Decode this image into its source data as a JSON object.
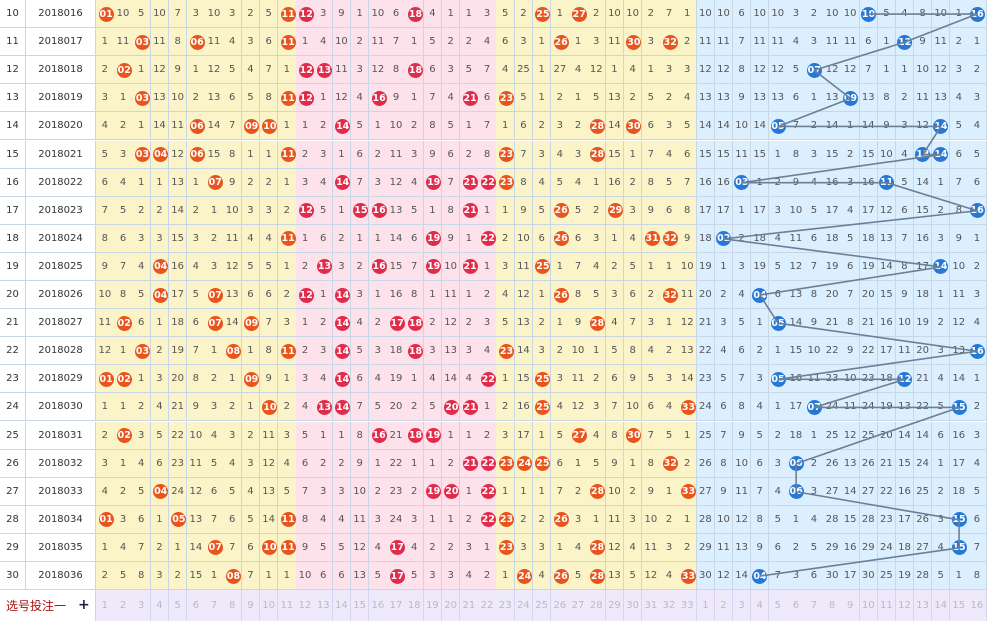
{
  "footer": {
    "label": "选号投注一",
    "plus": "+"
  },
  "red_numbers": [
    "1",
    "2",
    "3",
    "4",
    "5",
    "6",
    "7",
    "8",
    "9",
    "10",
    "11",
    "12",
    "13",
    "14",
    "15",
    "16",
    "17",
    "18",
    "19",
    "20",
    "21",
    "22",
    "23",
    "24",
    "25",
    "26",
    "27",
    "28",
    "29",
    "30",
    "31",
    "32",
    "33"
  ],
  "blue_numbers": [
    "1",
    "2",
    "3",
    "4",
    "5",
    "6",
    "7",
    "8",
    "9",
    "10",
    "11",
    "12",
    "13",
    "14",
    "15",
    "16"
  ],
  "colors": {
    "red_ball": "#e8541c",
    "pink_ball": "#e02b4b",
    "blue_ball": "#2678d6"
  },
  "rows": [
    {
      "no": "10",
      "period": "2018016",
      "red": [
        "01",
        "10",
        "5",
        "10",
        "7",
        "3",
        "10",
        "3",
        "2",
        "5",
        "11",
        "12",
        "3",
        "9",
        "1",
        "10",
        "6",
        "18",
        "4",
        "1",
        "1",
        "3",
        "5",
        "2",
        "25",
        "1",
        "27",
        "2",
        "10",
        "10",
        "2",
        "7",
        "1"
      ],
      "blue": [
        "10",
        "10",
        "6",
        "10",
        "10",
        "3",
        "2",
        "10",
        "10",
        "10",
        "5",
        "4",
        "8",
        "10",
        "1",
        "16"
      ]
    },
    {
      "no": "11",
      "period": "2018017",
      "red": [
        "1",
        "11",
        "03",
        "11",
        "8",
        "06",
        "11",
        "4",
        "3",
        "6",
        "11",
        "1",
        "4",
        "10",
        "2",
        "11",
        "7",
        "1",
        "5",
        "2",
        "2",
        "4",
        "6",
        "3",
        "1",
        "26",
        "1",
        "3",
        "11",
        "30",
        "3",
        "32",
        "2"
      ],
      "blue": [
        "11",
        "11",
        "7",
        "11",
        "11",
        "4",
        "3",
        "11",
        "11",
        "6",
        "1",
        "12",
        "9",
        "11",
        "2",
        "1"
      ]
    },
    {
      "no": "12",
      "period": "2018018",
      "red": [
        "2",
        "02",
        "1",
        "12",
        "9",
        "1",
        "12",
        "5",
        "4",
        "7",
        "1",
        "12",
        "13",
        "11",
        "3",
        "12",
        "8",
        "18",
        "6",
        "3",
        "5",
        "7",
        "4",
        "25",
        "1",
        "27",
        "4",
        "12",
        "1",
        "4",
        "1",
        "3",
        "3"
      ],
      "blue": [
        "12",
        "12",
        "8",
        "12",
        "12",
        "5",
        "07",
        "12",
        "12",
        "7",
        "1",
        "1",
        "10",
        "12",
        "3",
        "2"
      ]
    },
    {
      "no": "13",
      "period": "2018019",
      "red": [
        "3",
        "1",
        "03",
        "13",
        "10",
        "2",
        "13",
        "6",
        "5",
        "8",
        "11",
        "12",
        "1",
        "12",
        "4",
        "16",
        "9",
        "1",
        "7",
        "4",
        "21",
        "6",
        "23",
        "5",
        "1",
        "2",
        "1",
        "5",
        "13",
        "2",
        "5",
        "2",
        "4"
      ],
      "blue": [
        "13",
        "13",
        "9",
        "13",
        "13",
        "6",
        "1",
        "13",
        "09",
        "13",
        "8",
        "2",
        "11",
        "13",
        "4",
        "3"
      ]
    },
    {
      "no": "14",
      "period": "2018020",
      "red": [
        "4",
        "2",
        "1",
        "14",
        "11",
        "06",
        "14",
        "7",
        "09",
        "10",
        "1",
        "1",
        "2",
        "14",
        "5",
        "1",
        "10",
        "2",
        "8",
        "5",
        "1",
        "7",
        "1",
        "6",
        "2",
        "3",
        "2",
        "28",
        "14",
        "30",
        "6",
        "3",
        "5"
      ],
      "blue": [
        "14",
        "14",
        "10",
        "14",
        "05",
        "7",
        "2",
        "14",
        "1",
        "14",
        "9",
        "3",
        "12",
        "14",
        "5",
        "4"
      ]
    },
    {
      "no": "15",
      "period": "2018021",
      "red": [
        "5",
        "3",
        "03",
        "04",
        "12",
        "06",
        "15",
        "8",
        "1",
        "1",
        "11",
        "2",
        "3",
        "1",
        "6",
        "2",
        "11",
        "3",
        "9",
        "6",
        "2",
        "8",
        "23",
        "7",
        "3",
        "4",
        "3",
        "28",
        "15",
        "1",
        "7",
        "4",
        "6"
      ],
      "blue": [
        "15",
        "15",
        "11",
        "15",
        "1",
        "8",
        "3",
        "15",
        "2",
        "15",
        "10",
        "4",
        "13",
        "14",
        "6",
        "5"
      ]
    },
    {
      "no": "16",
      "period": "2018022",
      "red": [
        "6",
        "4",
        "1",
        "1",
        "13",
        "1",
        "07",
        "9",
        "2",
        "2",
        "1",
        "3",
        "4",
        "14",
        "7",
        "3",
        "12",
        "4",
        "19",
        "7",
        "21",
        "22",
        "23",
        "8",
        "4",
        "5",
        "4",
        "1",
        "16",
        "2",
        "8",
        "5",
        "7"
      ],
      "blue": [
        "16",
        "16",
        "03",
        "1",
        "2",
        "9",
        "4",
        "16",
        "3",
        "16",
        "11",
        "5",
        "14",
        "1",
        "7",
        "6"
      ]
    },
    {
      "no": "17",
      "period": "2018023",
      "red": [
        "7",
        "5",
        "2",
        "2",
        "14",
        "2",
        "1",
        "10",
        "3",
        "3",
        "2",
        "12",
        "5",
        "1",
        "15",
        "16",
        "13",
        "5",
        "1",
        "8",
        "21",
        "1",
        "1",
        "9",
        "5",
        "26",
        "5",
        "2",
        "29",
        "3",
        "9",
        "6",
        "8"
      ],
      "blue": [
        "17",
        "17",
        "1",
        "17",
        "3",
        "10",
        "5",
        "17",
        "4",
        "17",
        "12",
        "6",
        "15",
        "2",
        "8",
        "16"
      ]
    },
    {
      "no": "18",
      "period": "2018024",
      "red": [
        "8",
        "6",
        "3",
        "3",
        "15",
        "3",
        "2",
        "11",
        "4",
        "4",
        "11",
        "1",
        "6",
        "2",
        "1",
        "1",
        "14",
        "6",
        "19",
        "9",
        "1",
        "22",
        "2",
        "10",
        "6",
        "26",
        "6",
        "3",
        "1",
        "4",
        "31",
        "32",
        "9"
      ],
      "blue": [
        "18",
        "02",
        "2",
        "18",
        "4",
        "11",
        "6",
        "18",
        "5",
        "18",
        "13",
        "7",
        "16",
        "3",
        "9",
        "1"
      ]
    },
    {
      "no": "19",
      "period": "2018025",
      "red": [
        "9",
        "7",
        "4",
        "04",
        "16",
        "4",
        "3",
        "12",
        "5",
        "5",
        "1",
        "2",
        "13",
        "3",
        "2",
        "16",
        "15",
        "7",
        "19",
        "10",
        "21",
        "1",
        "3",
        "11",
        "25",
        "1",
        "7",
        "4",
        "2",
        "5",
        "1",
        "1",
        "10"
      ],
      "blue": [
        "19",
        "1",
        "3",
        "19",
        "5",
        "12",
        "7",
        "19",
        "6",
        "19",
        "14",
        "8",
        "17",
        "14",
        "10",
        "2"
      ]
    },
    {
      "no": "20",
      "period": "2018026",
      "red": [
        "10",
        "8",
        "5",
        "04",
        "17",
        "5",
        "07",
        "13",
        "6",
        "6",
        "2",
        "12",
        "1",
        "14",
        "3",
        "1",
        "16",
        "8",
        "1",
        "11",
        "1",
        "2",
        "4",
        "12",
        "1",
        "26",
        "8",
        "5",
        "3",
        "6",
        "2",
        "32",
        "11"
      ],
      "blue": [
        "20",
        "2",
        "4",
        "04",
        "6",
        "13",
        "8",
        "20",
        "7",
        "20",
        "15",
        "9",
        "18",
        "1",
        "11",
        "3"
      ]
    },
    {
      "no": "21",
      "period": "2018027",
      "red": [
        "11",
        "02",
        "6",
        "1",
        "18",
        "6",
        "07",
        "14",
        "09",
        "7",
        "3",
        "1",
        "2",
        "14",
        "4",
        "2",
        "17",
        "18",
        "2",
        "12",
        "2",
        "3",
        "5",
        "13",
        "2",
        "1",
        "9",
        "28",
        "4",
        "7",
        "3",
        "1",
        "12"
      ],
      "blue": [
        "21",
        "3",
        "5",
        "1",
        "05",
        "14",
        "9",
        "21",
        "8",
        "21",
        "16",
        "10",
        "19",
        "2",
        "12",
        "4"
      ]
    },
    {
      "no": "22",
      "period": "2018028",
      "red": [
        "12",
        "1",
        "03",
        "2",
        "19",
        "7",
        "1",
        "08",
        "1",
        "8",
        "11",
        "2",
        "3",
        "14",
        "5",
        "3",
        "18",
        "18",
        "3",
        "13",
        "3",
        "4",
        "23",
        "14",
        "3",
        "2",
        "10",
        "1",
        "5",
        "8",
        "4",
        "2",
        "13"
      ],
      "blue": [
        "22",
        "4",
        "6",
        "2",
        "1",
        "15",
        "10",
        "22",
        "9",
        "22",
        "17",
        "11",
        "20",
        "3",
        "13",
        "16"
      ]
    },
    {
      "no": "23",
      "period": "2018029",
      "red": [
        "01",
        "02",
        "1",
        "3",
        "20",
        "8",
        "2",
        "1",
        "09",
        "9",
        "1",
        "3",
        "4",
        "14",
        "6",
        "4",
        "19",
        "1",
        "4",
        "14",
        "4",
        "22",
        "1",
        "15",
        "25",
        "3",
        "11",
        "2",
        "6",
        "9",
        "5",
        "3",
        "14"
      ],
      "blue": [
        "23",
        "5",
        "7",
        "3",
        "05",
        "16",
        "11",
        "23",
        "10",
        "23",
        "18",
        "12",
        "21",
        "4",
        "14",
        "1"
      ]
    },
    {
      "no": "24",
      "period": "2018030",
      "red": [
        "1",
        "1",
        "2",
        "4",
        "21",
        "9",
        "3",
        "2",
        "1",
        "10",
        "2",
        "4",
        "13",
        "14",
        "7",
        "5",
        "20",
        "2",
        "5",
        "20",
        "21",
        "1",
        "2",
        "16",
        "25",
        "4",
        "12",
        "3",
        "7",
        "10",
        "6",
        "4",
        "33"
      ],
      "blue": [
        "24",
        "6",
        "8",
        "4",
        "1",
        "17",
        "07",
        "24",
        "11",
        "24",
        "19",
        "13",
        "22",
        "5",
        "15",
        "2"
      ]
    },
    {
      "no": "25",
      "period": "2018031",
      "red": [
        "2",
        "02",
        "3",
        "5",
        "22",
        "10",
        "4",
        "3",
        "2",
        "11",
        "3",
        "5",
        "1",
        "1",
        "8",
        "16",
        "21",
        "18",
        "19",
        "1",
        "1",
        "2",
        "3",
        "17",
        "1",
        "5",
        "27",
        "4",
        "8",
        "30",
        "7",
        "5",
        "1"
      ],
      "blue": [
        "25",
        "7",
        "9",
        "5",
        "2",
        "18",
        "1",
        "25",
        "12",
        "25",
        "20",
        "14",
        "14",
        "6",
        "16",
        "3"
      ]
    },
    {
      "no": "26",
      "period": "2018032",
      "red": [
        "3",
        "1",
        "4",
        "6",
        "23",
        "11",
        "5",
        "4",
        "3",
        "12",
        "4",
        "6",
        "2",
        "2",
        "9",
        "1",
        "22",
        "1",
        "1",
        "2",
        "21",
        "22",
        "23",
        "24",
        "25",
        "6",
        "1",
        "5",
        "9",
        "1",
        "8",
        "32",
        "2"
      ],
      "blue": [
        "26",
        "8",
        "10",
        "6",
        "3",
        "06",
        "2",
        "26",
        "13",
        "26",
        "21",
        "15",
        "24",
        "1",
        "17",
        "4"
      ]
    },
    {
      "no": "27",
      "period": "2018033",
      "red": [
        "4",
        "2",
        "5",
        "04",
        "24",
        "12",
        "6",
        "5",
        "4",
        "13",
        "5",
        "7",
        "3",
        "3",
        "10",
        "2",
        "23",
        "2",
        "19",
        "20",
        "1",
        "22",
        "1",
        "1",
        "1",
        "7",
        "2",
        "28",
        "10",
        "2",
        "9",
        "1",
        "33"
      ],
      "blue": [
        "27",
        "9",
        "11",
        "7",
        "4",
        "06",
        "3",
        "27",
        "14",
        "27",
        "22",
        "16",
        "25",
        "2",
        "18",
        "5"
      ]
    },
    {
      "no": "28",
      "period": "2018034",
      "red": [
        "01",
        "3",
        "6",
        "1",
        "05",
        "13",
        "7",
        "6",
        "5",
        "14",
        "11",
        "8",
        "4",
        "4",
        "11",
        "3",
        "24",
        "3",
        "1",
        "1",
        "2",
        "22",
        "23",
        "2",
        "2",
        "26",
        "3",
        "1",
        "11",
        "3",
        "10",
        "2",
        "1"
      ],
      "blue": [
        "28",
        "10",
        "12",
        "8",
        "5",
        "1",
        "4",
        "28",
        "15",
        "28",
        "23",
        "17",
        "26",
        "3",
        "15",
        "6"
      ]
    },
    {
      "no": "29",
      "period": "2018035",
      "red": [
        "1",
        "4",
        "7",
        "2",
        "1",
        "14",
        "07",
        "7",
        "6",
        "10",
        "11",
        "9",
        "5",
        "5",
        "12",
        "4",
        "17",
        "4",
        "2",
        "2",
        "3",
        "1",
        "23",
        "3",
        "3",
        "1",
        "4",
        "28",
        "12",
        "4",
        "11",
        "3",
        "2"
      ],
      "blue": [
        "29",
        "11",
        "13",
        "9",
        "6",
        "2",
        "5",
        "29",
        "16",
        "29",
        "24",
        "18",
        "27",
        "4",
        "15",
        "7"
      ]
    },
    {
      "no": "30",
      "period": "2018036",
      "red": [
        "2",
        "5",
        "8",
        "3",
        "2",
        "15",
        "1",
        "08",
        "7",
        "1",
        "1",
        "10",
        "6",
        "6",
        "13",
        "5",
        "17",
        "5",
        "3",
        "3",
        "4",
        "2",
        "1",
        "24",
        "4",
        "26",
        "5",
        "28",
        "13",
        "5",
        "12",
        "4",
        "33"
      ],
      "blue": [
        "30",
        "12",
        "14",
        "04",
        "7",
        "3",
        "6",
        "30",
        "17",
        "30",
        "25",
        "19",
        "28",
        "5",
        "1",
        "8"
      ]
    }
  ]
}
